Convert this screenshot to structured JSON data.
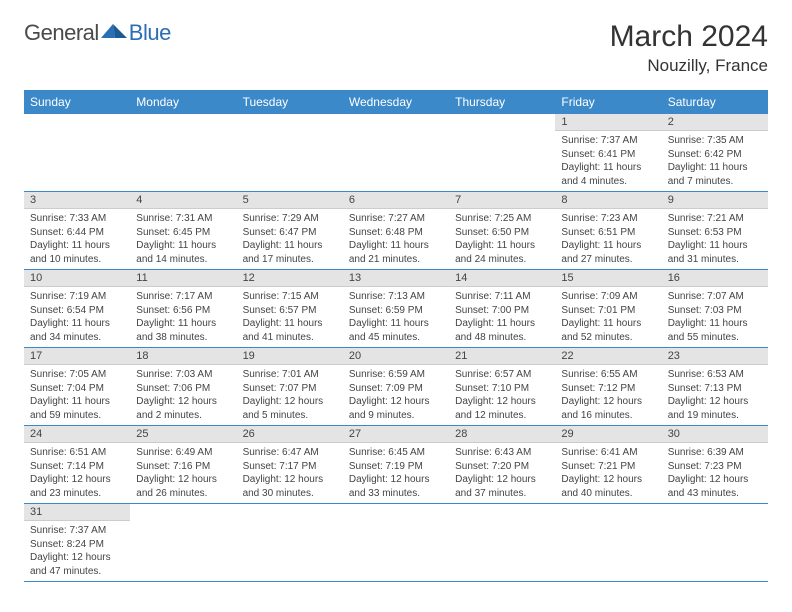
{
  "logo": {
    "part1": "General",
    "part2": "Blue"
  },
  "title": "March 2024",
  "location": "Nouzilly, France",
  "colors": {
    "header_bg": "#3b89c9",
    "header_text": "#ffffff",
    "daynum_bg": "#e4e4e4",
    "border": "#3b89c9"
  },
  "weekdays": [
    "Sunday",
    "Monday",
    "Tuesday",
    "Wednesday",
    "Thursday",
    "Friday",
    "Saturday"
  ],
  "weeks": [
    [
      null,
      null,
      null,
      null,
      null,
      {
        "n": "1",
        "sr": "7:37 AM",
        "ss": "6:41 PM",
        "dl": "11 hours and 4 minutes."
      },
      {
        "n": "2",
        "sr": "7:35 AM",
        "ss": "6:42 PM",
        "dl": "11 hours and 7 minutes."
      }
    ],
    [
      {
        "n": "3",
        "sr": "7:33 AM",
        "ss": "6:44 PM",
        "dl": "11 hours and 10 minutes."
      },
      {
        "n": "4",
        "sr": "7:31 AM",
        "ss": "6:45 PM",
        "dl": "11 hours and 14 minutes."
      },
      {
        "n": "5",
        "sr": "7:29 AM",
        "ss": "6:47 PM",
        "dl": "11 hours and 17 minutes."
      },
      {
        "n": "6",
        "sr": "7:27 AM",
        "ss": "6:48 PM",
        "dl": "11 hours and 21 minutes."
      },
      {
        "n": "7",
        "sr": "7:25 AM",
        "ss": "6:50 PM",
        "dl": "11 hours and 24 minutes."
      },
      {
        "n": "8",
        "sr": "7:23 AM",
        "ss": "6:51 PM",
        "dl": "11 hours and 27 minutes."
      },
      {
        "n": "9",
        "sr": "7:21 AM",
        "ss": "6:53 PM",
        "dl": "11 hours and 31 minutes."
      }
    ],
    [
      {
        "n": "10",
        "sr": "7:19 AM",
        "ss": "6:54 PM",
        "dl": "11 hours and 34 minutes."
      },
      {
        "n": "11",
        "sr": "7:17 AM",
        "ss": "6:56 PM",
        "dl": "11 hours and 38 minutes."
      },
      {
        "n": "12",
        "sr": "7:15 AM",
        "ss": "6:57 PM",
        "dl": "11 hours and 41 minutes."
      },
      {
        "n": "13",
        "sr": "7:13 AM",
        "ss": "6:59 PM",
        "dl": "11 hours and 45 minutes."
      },
      {
        "n": "14",
        "sr": "7:11 AM",
        "ss": "7:00 PM",
        "dl": "11 hours and 48 minutes."
      },
      {
        "n": "15",
        "sr": "7:09 AM",
        "ss": "7:01 PM",
        "dl": "11 hours and 52 minutes."
      },
      {
        "n": "16",
        "sr": "7:07 AM",
        "ss": "7:03 PM",
        "dl": "11 hours and 55 minutes."
      }
    ],
    [
      {
        "n": "17",
        "sr": "7:05 AM",
        "ss": "7:04 PM",
        "dl": "11 hours and 59 minutes."
      },
      {
        "n": "18",
        "sr": "7:03 AM",
        "ss": "7:06 PM",
        "dl": "12 hours and 2 minutes."
      },
      {
        "n": "19",
        "sr": "7:01 AM",
        "ss": "7:07 PM",
        "dl": "12 hours and 5 minutes."
      },
      {
        "n": "20",
        "sr": "6:59 AM",
        "ss": "7:09 PM",
        "dl": "12 hours and 9 minutes."
      },
      {
        "n": "21",
        "sr": "6:57 AM",
        "ss": "7:10 PM",
        "dl": "12 hours and 12 minutes."
      },
      {
        "n": "22",
        "sr": "6:55 AM",
        "ss": "7:12 PM",
        "dl": "12 hours and 16 minutes."
      },
      {
        "n": "23",
        "sr": "6:53 AM",
        "ss": "7:13 PM",
        "dl": "12 hours and 19 minutes."
      }
    ],
    [
      {
        "n": "24",
        "sr": "6:51 AM",
        "ss": "7:14 PM",
        "dl": "12 hours and 23 minutes."
      },
      {
        "n": "25",
        "sr": "6:49 AM",
        "ss": "7:16 PM",
        "dl": "12 hours and 26 minutes."
      },
      {
        "n": "26",
        "sr": "6:47 AM",
        "ss": "7:17 PM",
        "dl": "12 hours and 30 minutes."
      },
      {
        "n": "27",
        "sr": "6:45 AM",
        "ss": "7:19 PM",
        "dl": "12 hours and 33 minutes."
      },
      {
        "n": "28",
        "sr": "6:43 AM",
        "ss": "7:20 PM",
        "dl": "12 hours and 37 minutes."
      },
      {
        "n": "29",
        "sr": "6:41 AM",
        "ss": "7:21 PM",
        "dl": "12 hours and 40 minutes."
      },
      {
        "n": "30",
        "sr": "6:39 AM",
        "ss": "7:23 PM",
        "dl": "12 hours and 43 minutes."
      }
    ],
    [
      {
        "n": "31",
        "sr": "7:37 AM",
        "ss": "8:24 PM",
        "dl": "12 hours and 47 minutes."
      },
      null,
      null,
      null,
      null,
      null,
      null
    ]
  ],
  "labels": {
    "sunrise": "Sunrise:",
    "sunset": "Sunset:",
    "daylight": "Daylight:"
  }
}
